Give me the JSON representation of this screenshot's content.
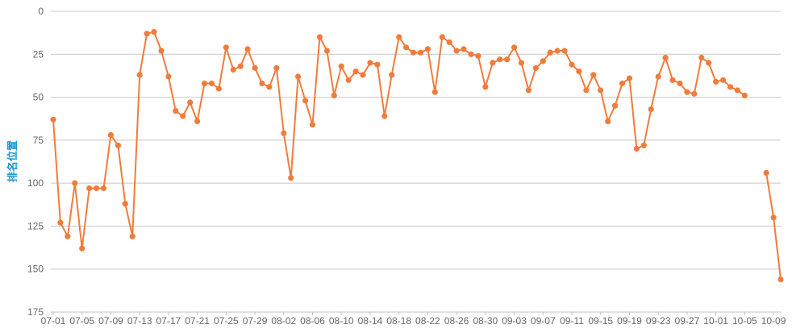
{
  "chart_data": {
    "type": "line",
    "title": "",
    "ylabel": "排名位置",
    "xlabel": "",
    "y_reversed": true,
    "ylim": [
      0,
      175
    ],
    "yticks": [
      0,
      25,
      50,
      75,
      100,
      125,
      150,
      175
    ],
    "grid": "horizontal",
    "colors": {
      "line": "#f07c3c",
      "grid": "#c8c8c8",
      "ylabel": "#1a9ad6"
    },
    "x_tick_labels": [
      "07-01",
      "07-05",
      "07-09",
      "07-13",
      "07-17",
      "07-21",
      "07-25",
      "07-29",
      "08-02",
      "08-06",
      "08-10",
      "08-14",
      "08-18",
      "08-22",
      "08-26",
      "08-30",
      "09-03",
      "09-07",
      "09-11",
      "09-15",
      "09-19",
      "09-23",
      "09-27",
      "10-01",
      "10-05",
      "10-09"
    ],
    "x": [
      "07-01",
      "07-02",
      "07-03",
      "07-04",
      "07-05",
      "07-06",
      "07-07",
      "07-08",
      "07-09",
      "07-10",
      "07-11",
      "07-12",
      "07-13",
      "07-14",
      "07-15",
      "07-16",
      "07-17",
      "07-18",
      "07-19",
      "07-20",
      "07-21",
      "07-22",
      "07-23",
      "07-24",
      "07-25",
      "07-26",
      "07-27",
      "07-28",
      "07-29",
      "07-30",
      "07-31",
      "08-01",
      "08-02",
      "08-03",
      "08-04",
      "08-05",
      "08-06",
      "08-07",
      "08-08",
      "08-09",
      "08-10",
      "08-11",
      "08-12",
      "08-13",
      "08-14",
      "08-15",
      "08-16",
      "08-17",
      "08-18",
      "08-19",
      "08-20",
      "08-21",
      "08-22",
      "08-23",
      "08-24",
      "08-25",
      "08-26",
      "08-27",
      "08-28",
      "08-29",
      "08-30",
      "08-31",
      "09-01",
      "09-02",
      "09-03",
      "09-04",
      "09-05",
      "09-06",
      "09-07",
      "09-08",
      "09-09",
      "09-10",
      "09-11",
      "09-12",
      "09-13",
      "09-14",
      "09-15",
      "09-16",
      "09-17",
      "09-18",
      "09-19",
      "09-20",
      "09-21",
      "09-22",
      "09-23",
      "09-24",
      "09-25",
      "09-26",
      "09-27",
      "09-28",
      "09-29",
      "09-30",
      "10-01",
      "10-02",
      "10-03",
      "10-04",
      "10-05",
      "10-06",
      "10-07",
      "10-08",
      "10-09",
      "10-10"
    ],
    "series": [
      {
        "values": [
          63,
          123,
          131,
          100,
          138,
          103,
          103,
          103,
          72,
          78,
          112,
          131,
          37,
          13,
          12,
          23,
          38,
          58,
          61,
          53,
          64,
          42,
          42,
          45,
          21,
          34,
          32,
          22,
          33,
          42,
          44,
          33,
          71,
          97,
          38,
          52,
          66,
          15,
          23,
          49,
          32,
          40,
          35,
          37,
          30,
          31,
          61,
          37,
          15,
          21,
          24,
          24,
          22,
          47,
          15,
          18,
          23,
          22,
          25,
          26,
          44,
          30,
          28,
          28,
          21,
          30,
          46,
          33,
          29,
          24,
          23,
          23,
          31,
          35,
          46,
          37,
          46,
          64,
          55,
          42,
          39,
          80,
          78,
          57,
          38,
          27,
          40,
          42,
          47,
          48,
          27,
          30,
          41,
          40,
          44,
          46,
          49,
          null,
          null,
          94,
          120,
          156
        ]
      }
    ]
  }
}
